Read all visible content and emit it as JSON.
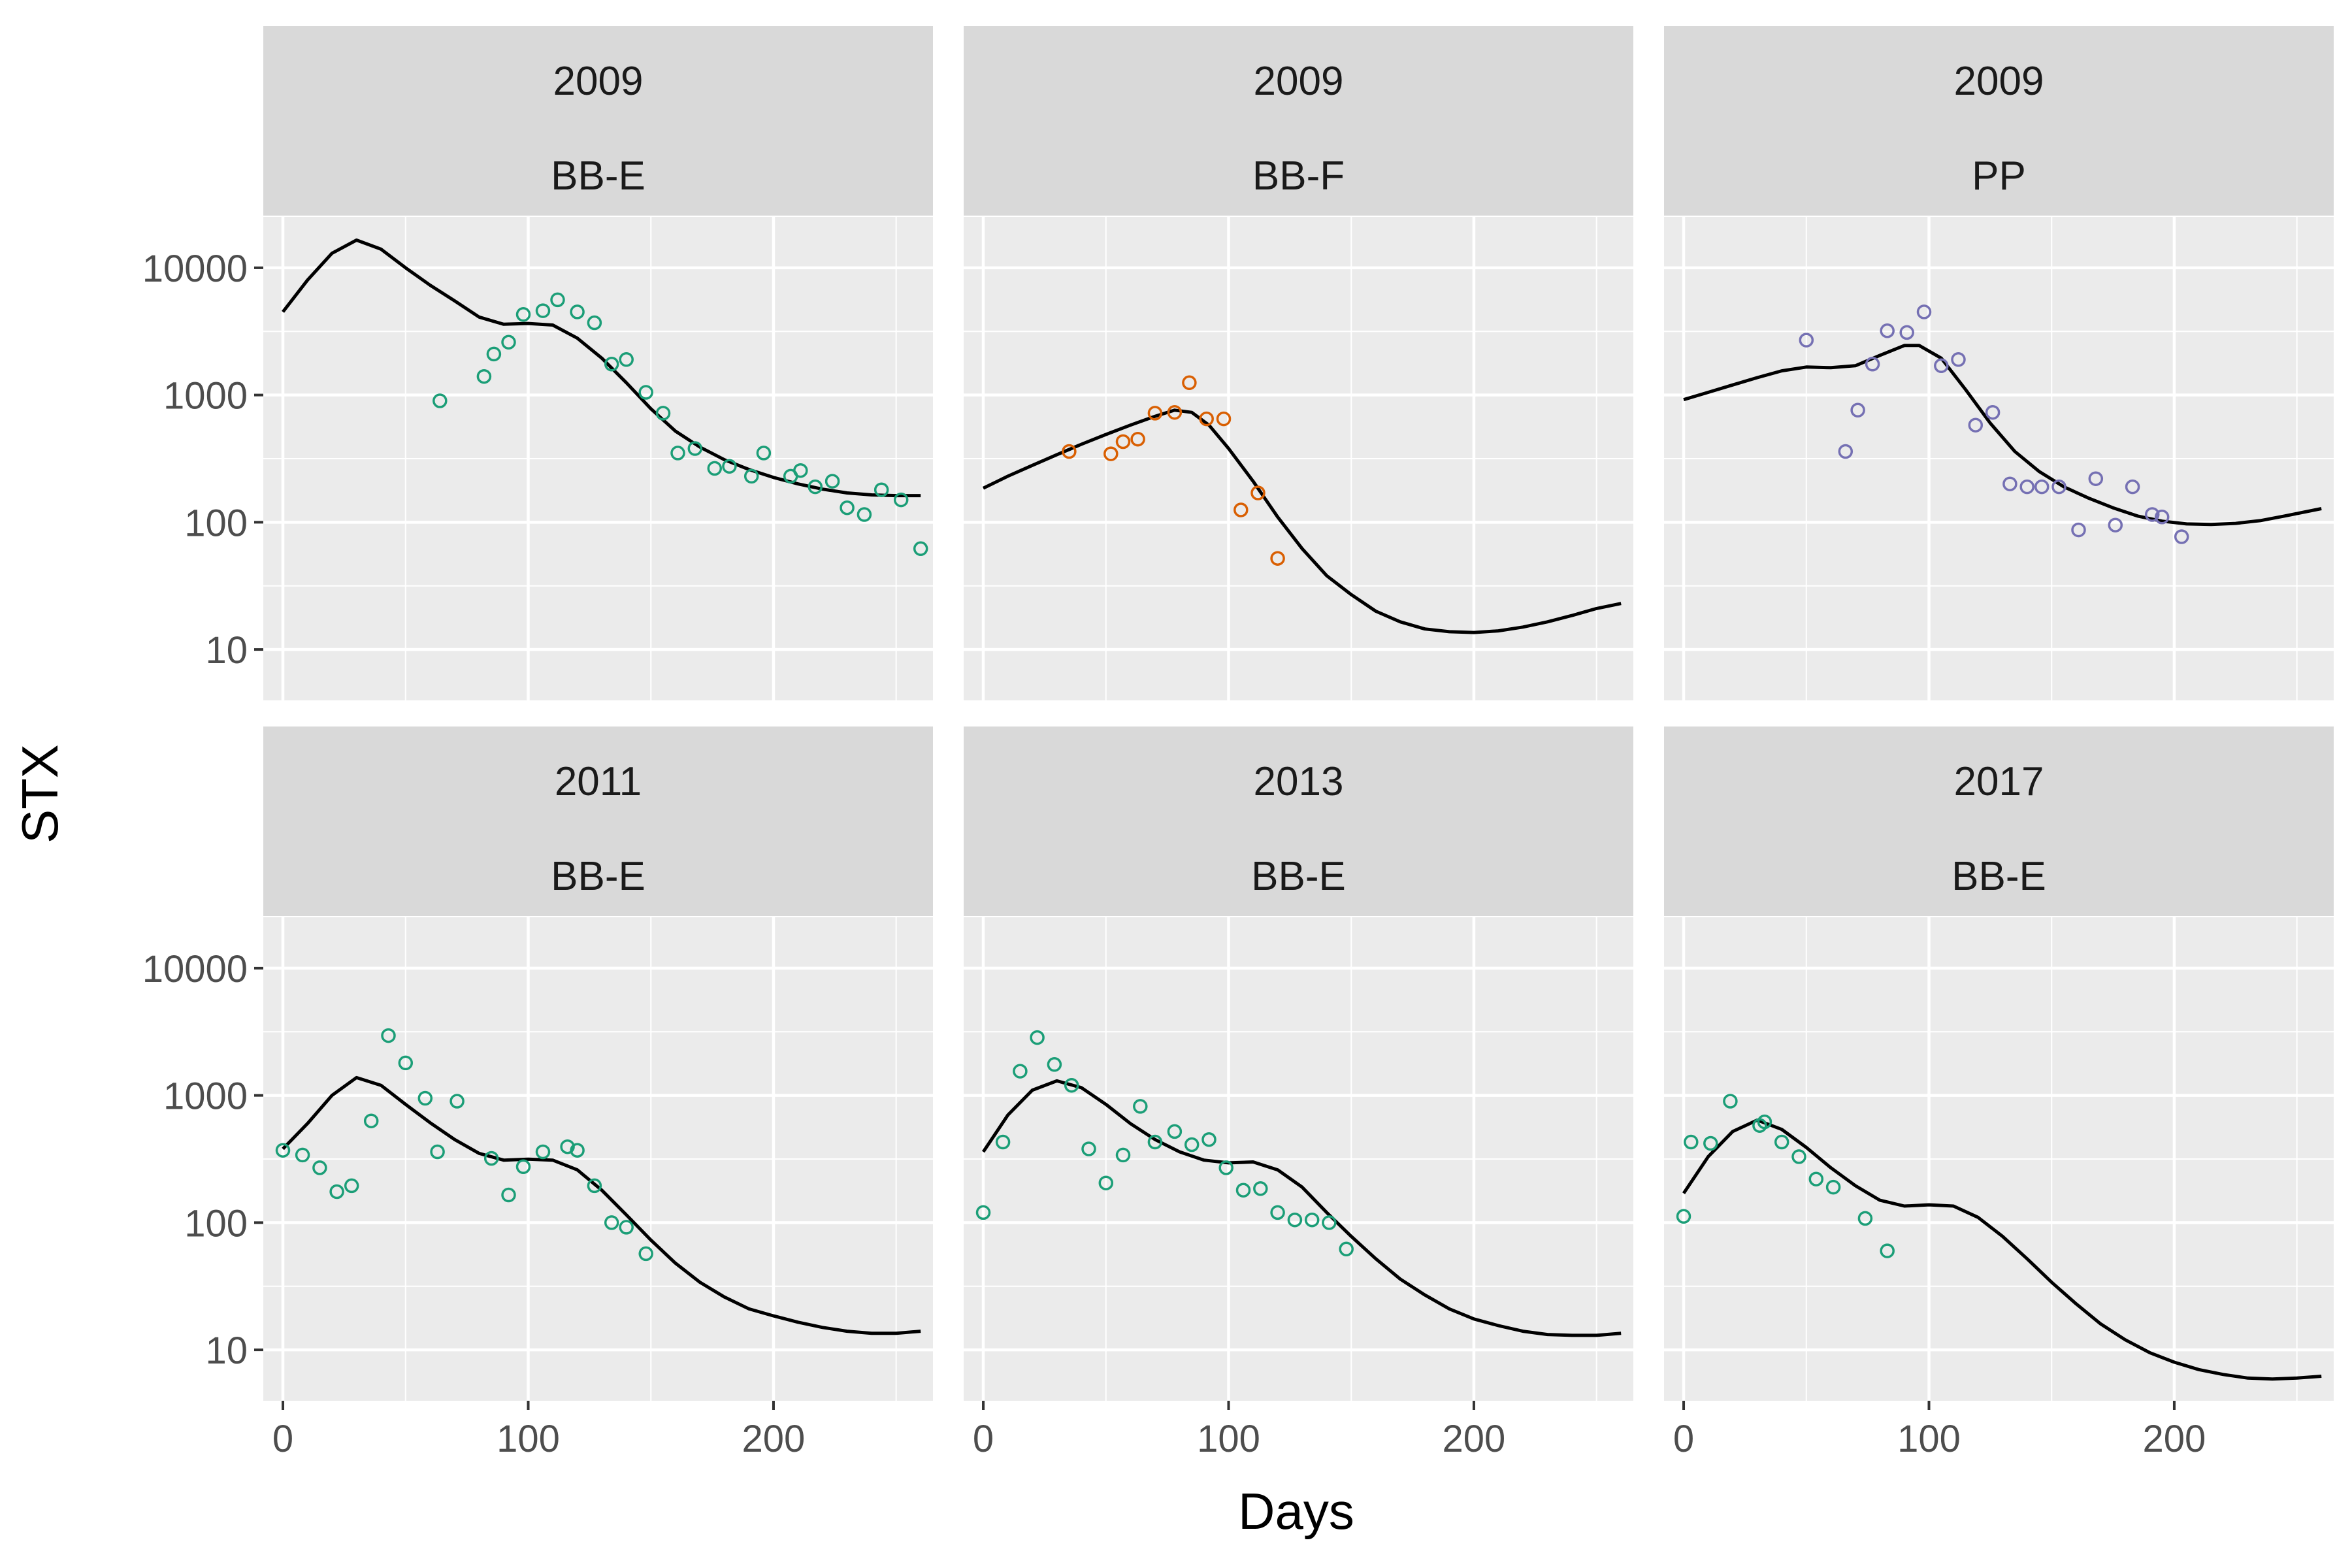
{
  "figure": {
    "ylabel": "STX",
    "xlabel": "Days"
  },
  "colors": {
    "BB-E": "#1b9e77",
    "BB-F": "#d95f02",
    "PP": "#7570b3",
    "fit_line": "#000000",
    "panel_background": "#ebebeb",
    "strip_background": "#d9d9d9",
    "grid": "#ffffff"
  },
  "chart_data": [
    {
      "type": "scatter",
      "facet": {
        "year": "2009",
        "site": "BB-E"
      },
      "xlim": [
        -8,
        265
      ],
      "ylim_log10": [
        0.6,
        4.4
      ],
      "y_scale": "log10",
      "xticks": [
        0,
        100,
        200
      ],
      "yticks": [
        10,
        100,
        1000,
        10000
      ],
      "points": [
        [
          64,
          900
        ],
        [
          82,
          1400
        ],
        [
          86,
          2100
        ],
        [
          92,
          2600
        ],
        [
          98,
          4300
        ],
        [
          106,
          4600
        ],
        [
          112,
          5600
        ],
        [
          120,
          4500
        ],
        [
          127,
          3700
        ],
        [
          134,
          1750
        ],
        [
          140,
          1900
        ],
        [
          148,
          1050
        ],
        [
          155,
          720
        ],
        [
          161,
          350
        ],
        [
          168,
          380
        ],
        [
          176,
          265
        ],
        [
          182,
          275
        ],
        [
          191,
          230
        ],
        [
          196,
          350
        ],
        [
          207,
          230
        ],
        [
          211,
          255
        ],
        [
          217,
          190
        ],
        [
          224,
          210
        ],
        [
          230,
          130
        ],
        [
          237,
          115
        ],
        [
          244,
          180
        ],
        [
          252,
          150
        ],
        [
          260,
          62
        ]
      ],
      "fit": [
        [
          0,
          4500
        ],
        [
          10,
          8000
        ],
        [
          20,
          13000
        ],
        [
          30,
          16500
        ],
        [
          40,
          14000
        ],
        [
          50,
          10000
        ],
        [
          60,
          7300
        ],
        [
          70,
          5500
        ],
        [
          80,
          4100
        ],
        [
          90,
          3600
        ],
        [
          100,
          3650
        ],
        [
          110,
          3550
        ],
        [
          120,
          2800
        ],
        [
          130,
          1950
        ],
        [
          140,
          1250
        ],
        [
          150,
          780
        ],
        [
          160,
          520
        ],
        [
          170,
          390
        ],
        [
          180,
          310
        ],
        [
          190,
          260
        ],
        [
          200,
          225
        ],
        [
          210,
          200
        ],
        [
          220,
          182
        ],
        [
          230,
          170
        ],
        [
          240,
          164
        ],
        [
          250,
          162
        ],
        [
          260,
          162
        ]
      ]
    },
    {
      "type": "scatter",
      "facet": {
        "year": "2009",
        "site": "BB-F"
      },
      "xlim": [
        -8,
        265
      ],
      "ylim_log10": [
        0.6,
        4.4
      ],
      "y_scale": "log10",
      "xticks": [
        0,
        100,
        200
      ],
      "yticks": [
        10,
        100,
        1000,
        10000
      ],
      "points": [
        [
          35,
          360
        ],
        [
          52,
          345
        ],
        [
          57,
          430
        ],
        [
          63,
          450
        ],
        [
          70,
          720
        ],
        [
          78,
          730
        ],
        [
          84,
          1250
        ],
        [
          91,
          650
        ],
        [
          98,
          650
        ],
        [
          105,
          125
        ],
        [
          112,
          170
        ],
        [
          120,
          52
        ]
      ],
      "fit": [
        [
          0,
          185
        ],
        [
          10,
          230
        ],
        [
          20,
          280
        ],
        [
          30,
          340
        ],
        [
          40,
          410
        ],
        [
          50,
          490
        ],
        [
          60,
          580
        ],
        [
          70,
          680
        ],
        [
          78,
          760
        ],
        [
          85,
          730
        ],
        [
          92,
          580
        ],
        [
          100,
          380
        ],
        [
          110,
          210
        ],
        [
          120,
          110
        ],
        [
          130,
          62
        ],
        [
          140,
          38
        ],
        [
          150,
          27
        ],
        [
          160,
          20
        ],
        [
          170,
          16.5
        ],
        [
          180,
          14.5
        ],
        [
          190,
          13.8
        ],
        [
          200,
          13.6
        ],
        [
          210,
          14
        ],
        [
          220,
          15
        ],
        [
          230,
          16.5
        ],
        [
          240,
          18.5
        ],
        [
          250,
          21
        ],
        [
          260,
          23
        ]
      ]
    },
    {
      "type": "scatter",
      "facet": {
        "year": "2009",
        "site": "PP"
      },
      "xlim": [
        -8,
        265
      ],
      "ylim_log10": [
        0.6,
        4.4
      ],
      "y_scale": "log10",
      "xticks": [
        0,
        100,
        200
      ],
      "yticks": [
        10,
        100,
        1000,
        10000
      ],
      "points": [
        [
          50,
          2700
        ],
        [
          66,
          360
        ],
        [
          71,
          760
        ],
        [
          77,
          1750
        ],
        [
          83,
          3200
        ],
        [
          91,
          3100
        ],
        [
          98,
          4500
        ],
        [
          105,
          1700
        ],
        [
          112,
          1900
        ],
        [
          119,
          580
        ],
        [
          126,
          730
        ],
        [
          133,
          200
        ],
        [
          140,
          190
        ],
        [
          146,
          190
        ],
        [
          153,
          190
        ],
        [
          161,
          87
        ],
        [
          168,
          220
        ],
        [
          176,
          95
        ],
        [
          183,
          190
        ],
        [
          191,
          115
        ],
        [
          195,
          110
        ],
        [
          203,
          77
        ]
      ],
      "fit": [
        [
          0,
          920
        ],
        [
          10,
          1050
        ],
        [
          20,
          1200
        ],
        [
          30,
          1370
        ],
        [
          40,
          1550
        ],
        [
          50,
          1660
        ],
        [
          60,
          1640
        ],
        [
          70,
          1700
        ],
        [
          80,
          2050
        ],
        [
          90,
          2450
        ],
        [
          96,
          2450
        ],
        [
          105,
          1950
        ],
        [
          115,
          1100
        ],
        [
          125,
          600
        ],
        [
          135,
          360
        ],
        [
          145,
          250
        ],
        [
          155,
          190
        ],
        [
          165,
          155
        ],
        [
          175,
          130
        ],
        [
          185,
          112
        ],
        [
          195,
          102
        ],
        [
          205,
          97
        ],
        [
          215,
          96
        ],
        [
          225,
          98
        ],
        [
          235,
          103
        ],
        [
          245,
          112
        ],
        [
          260,
          128
        ]
      ]
    },
    {
      "type": "scatter",
      "facet": {
        "year": "2011",
        "site": "BB-E"
      },
      "xlim": [
        -8,
        265
      ],
      "ylim_log10": [
        0.6,
        4.4
      ],
      "y_scale": "log10",
      "xticks": [
        0,
        100,
        200
      ],
      "yticks": [
        10,
        100,
        1000,
        10000
      ],
      "points": [
        [
          0,
          370
        ],
        [
          8,
          340
        ],
        [
          15,
          270
        ],
        [
          22,
          175
        ],
        [
          28,
          195
        ],
        [
          36,
          630
        ],
        [
          43,
          2950
        ],
        [
          50,
          1800
        ],
        [
          58,
          950
        ],
        [
          63,
          360
        ],
        [
          71,
          900
        ],
        [
          85,
          320
        ],
        [
          92,
          165
        ],
        [
          98,
          275
        ],
        [
          106,
          360
        ],
        [
          116,
          395
        ],
        [
          120,
          370
        ],
        [
          127,
          195
        ],
        [
          134,
          100
        ],
        [
          140,
          92
        ],
        [
          148,
          57
        ]
      ],
      "fit": [
        [
          0,
          380
        ],
        [
          10,
          600
        ],
        [
          20,
          1000
        ],
        [
          30,
          1380
        ],
        [
          40,
          1200
        ],
        [
          50,
          850
        ],
        [
          60,
          610
        ],
        [
          70,
          450
        ],
        [
          80,
          350
        ],
        [
          90,
          310
        ],
        [
          100,
          315
        ],
        [
          110,
          310
        ],
        [
          120,
          260
        ],
        [
          130,
          180
        ],
        [
          140,
          115
        ],
        [
          150,
          73
        ],
        [
          160,
          48
        ],
        [
          170,
          34
        ],
        [
          180,
          26
        ],
        [
          190,
          21
        ],
        [
          200,
          18.5
        ],
        [
          210,
          16.5
        ],
        [
          220,
          15
        ],
        [
          230,
          14
        ],
        [
          240,
          13.5
        ],
        [
          250,
          13.5
        ],
        [
          260,
          14
        ]
      ]
    },
    {
      "type": "scatter",
      "facet": {
        "year": "2013",
        "site": "BB-E"
      },
      "xlim": [
        -8,
        265
      ],
      "ylim_log10": [
        0.6,
        4.4
      ],
      "y_scale": "log10",
      "xticks": [
        0,
        100,
        200
      ],
      "yticks": [
        10,
        100,
        1000,
        10000
      ],
      "points": [
        [
          0,
          120
        ],
        [
          8,
          430
        ],
        [
          15,
          1550
        ],
        [
          22,
          2850
        ],
        [
          29,
          1750
        ],
        [
          36,
          1200
        ],
        [
          43,
          380
        ],
        [
          50,
          205
        ],
        [
          57,
          340
        ],
        [
          64,
          820
        ],
        [
          70,
          430
        ],
        [
          78,
          520
        ],
        [
          85,
          410
        ],
        [
          92,
          450
        ],
        [
          99,
          270
        ],
        [
          106,
          180
        ],
        [
          113,
          185
        ],
        [
          120,
          120
        ],
        [
          127,
          105
        ],
        [
          134,
          105
        ],
        [
          141,
          100
        ],
        [
          148,
          62
        ]
      ],
      "fit": [
        [
          0,
          360
        ],
        [
          10,
          700
        ],
        [
          20,
          1100
        ],
        [
          30,
          1300
        ],
        [
          40,
          1150
        ],
        [
          50,
          850
        ],
        [
          60,
          600
        ],
        [
          70,
          450
        ],
        [
          80,
          360
        ],
        [
          90,
          310
        ],
        [
          100,
          295
        ],
        [
          110,
          300
        ],
        [
          120,
          260
        ],
        [
          130,
          190
        ],
        [
          140,
          120
        ],
        [
          150,
          78
        ],
        [
          160,
          52
        ],
        [
          170,
          36
        ],
        [
          180,
          27
        ],
        [
          190,
          21
        ],
        [
          200,
          17.5
        ],
        [
          210,
          15.5
        ],
        [
          220,
          14
        ],
        [
          230,
          13.2
        ],
        [
          240,
          13
        ],
        [
          250,
          13
        ],
        [
          260,
          13.5
        ]
      ]
    },
    {
      "type": "scatter",
      "facet": {
        "year": "2017",
        "site": "BB-E"
      },
      "xlim": [
        -8,
        265
      ],
      "ylim_log10": [
        0.6,
        4.4
      ],
      "y_scale": "log10",
      "xticks": [
        0,
        100,
        200
      ],
      "yticks": [
        10,
        100,
        1000,
        10000
      ],
      "points": [
        [
          0,
          112
        ],
        [
          3,
          430
        ],
        [
          11,
          420
        ],
        [
          19,
          900
        ],
        [
          31,
          580
        ],
        [
          33,
          620
        ],
        [
          40,
          430
        ],
        [
          47,
          330
        ],
        [
          54,
          220
        ],
        [
          61,
          190
        ],
        [
          74,
          108
        ],
        [
          83,
          60
        ]
      ],
      "fit": [
        [
          0,
          170
        ],
        [
          10,
          330
        ],
        [
          20,
          520
        ],
        [
          30,
          640
        ],
        [
          40,
          540
        ],
        [
          50,
          390
        ],
        [
          60,
          270
        ],
        [
          70,
          195
        ],
        [
          80,
          150
        ],
        [
          90,
          135
        ],
        [
          100,
          138
        ],
        [
          110,
          135
        ],
        [
          120,
          110
        ],
        [
          130,
          78
        ],
        [
          140,
          52
        ],
        [
          150,
          34
        ],
        [
          160,
          23
        ],
        [
          170,
          16
        ],
        [
          180,
          12
        ],
        [
          190,
          9.5
        ],
        [
          200,
          8
        ],
        [
          210,
          7
        ],
        [
          220,
          6.4
        ],
        [
          230,
          6
        ],
        [
          240,
          5.9
        ],
        [
          250,
          6
        ],
        [
          260,
          6.2
        ]
      ]
    }
  ]
}
